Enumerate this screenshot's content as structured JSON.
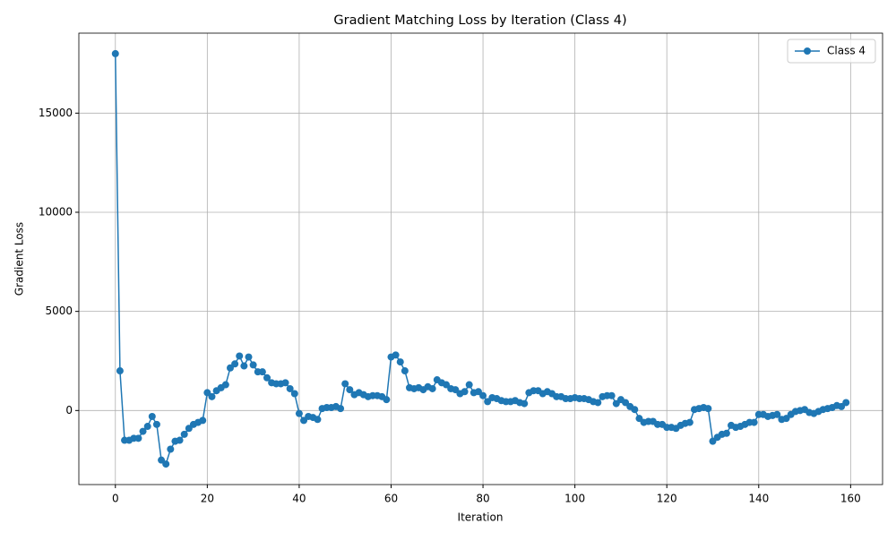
{
  "chart_data": {
    "type": "line",
    "title": "Gradient Matching Loss by Iteration (Class 4)",
    "x_label": "Iteration",
    "y_label": "Gradient Loss",
    "x": [
      0,
      1,
      2,
      3,
      4,
      5,
      6,
      7,
      8,
      9,
      10,
      11,
      12,
      13,
      14,
      15,
      16,
      17,
      18,
      19,
      20,
      21,
      22,
      23,
      24,
      25,
      26,
      27,
      28,
      29,
      30,
      31,
      32,
      33,
      34,
      35,
      36,
      37,
      38,
      39,
      40,
      41,
      42,
      43,
      44,
      45,
      46,
      47,
      48,
      49,
      50,
      51,
      52,
      53,
      54,
      55,
      56,
      57,
      58,
      59,
      60,
      61,
      62,
      63,
      64,
      65,
      66,
      67,
      68,
      69,
      70,
      71,
      72,
      73,
      74,
      75,
      76,
      77,
      78,
      79,
      80,
      81,
      82,
      83,
      84,
      85,
      86,
      87,
      88,
      89,
      90,
      91,
      92,
      93,
      94,
      95,
      96,
      97,
      98,
      99,
      100,
      101,
      102,
      103,
      104,
      105,
      106,
      107,
      108,
      109,
      110,
      111,
      112,
      113,
      114,
      115,
      116,
      117,
      118,
      119,
      120,
      121,
      122,
      123,
      124,
      125,
      126,
      127,
      128,
      129,
      130,
      131,
      132,
      133,
      134,
      135,
      136,
      137,
      138,
      139,
      140,
      141,
      142,
      143,
      144,
      145,
      146,
      147,
      148,
      149,
      150,
      151,
      152,
      153,
      154,
      155,
      156,
      157,
      158,
      159
    ],
    "series": [
      {
        "name": "Class 4",
        "color": "#1f77b4",
        "values": [
          18000,
          2000,
          -1500,
          -1500,
          -1400,
          -1400,
          -1050,
          -800,
          -300,
          -700,
          -2500,
          -2700,
          -1950,
          -1550,
          -1500,
          -1200,
          -900,
          -700,
          -600,
          -500,
          900,
          700,
          1000,
          1150,
          1300,
          2150,
          2350,
          2750,
          2250,
          2700,
          2300,
          1950,
          1950,
          1650,
          1400,
          1350,
          1350,
          1400,
          1100,
          850,
          -150,
          -500,
          -300,
          -350,
          -450,
          100,
          150,
          150,
          200,
          100,
          1350,
          1050,
          800,
          900,
          800,
          700,
          750,
          750,
          700,
          550,
          2700,
          2800,
          2450,
          2000,
          1150,
          1100,
          1150,
          1050,
          1200,
          1100,
          1550,
          1400,
          1300,
          1100,
          1050,
          850,
          950,
          1300,
          900,
          950,
          750,
          450,
          650,
          600,
          500,
          450,
          450,
          500,
          400,
          350,
          900,
          1000,
          1000,
          850,
          950,
          850,
          700,
          700,
          600,
          600,
          650,
          600,
          600,
          550,
          450,
          400,
          700,
          750,
          750,
          350,
          550,
          400,
          200,
          50,
          -400,
          -600,
          -550,
          -550,
          -700,
          -700,
          -850,
          -850,
          -900,
          -750,
          -650,
          -600,
          50,
          100,
          150,
          100,
          -1550,
          -1350,
          -1200,
          -1150,
          -750,
          -850,
          -800,
          -700,
          -600,
          -600,
          -200,
          -200,
          -300,
          -250,
          -200,
          -450,
          -400,
          -200,
          -50,
          0,
          50,
          -100,
          -150,
          -50,
          50,
          100,
          150,
          250,
          200,
          400
        ]
      }
    ],
    "xlim": [
      -7.95,
      166.95
    ],
    "ylim": [
      -3735,
      19035
    ],
    "xticks": [
      0,
      20,
      40,
      60,
      80,
      100,
      120,
      140,
      160
    ],
    "yticks": [
      0,
      5000,
      10000,
      15000
    ],
    "grid": true,
    "legend": "upper right"
  }
}
